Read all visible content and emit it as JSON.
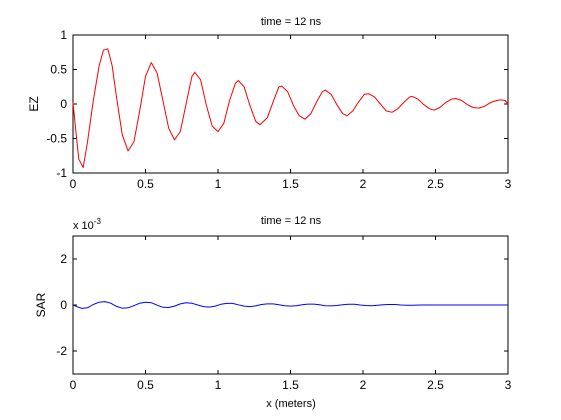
{
  "chart_data": [
    {
      "type": "line",
      "title": "time = 12 ns",
      "xlabel": "",
      "ylabel": "EZ",
      "xlim": [
        0,
        3
      ],
      "ylim": [
        -1,
        1
      ],
      "xticks": [
        0,
        0.5,
        1,
        1.5,
        2,
        2.5,
        3
      ],
      "xtick_labels": [
        "0",
        "0.5",
        "1",
        "1.5",
        "2",
        "2.5",
        "3"
      ],
      "yticks": [
        -1,
        -0.5,
        0,
        0.5,
        1
      ],
      "ytick_labels": [
        "-1",
        "-0.5",
        "0",
        "0.5",
        "1"
      ],
      "series": [
        {
          "color": "#ff0000",
          "x": [
            0,
            0.02,
            0.04,
            0.07,
            0.1,
            0.14,
            0.18,
            0.21,
            0.24,
            0.27,
            0.3,
            0.34,
            0.38,
            0.42,
            0.46,
            0.5,
            0.54,
            0.58,
            0.62,
            0.66,
            0.7,
            0.74,
            0.78,
            0.82,
            0.84,
            0.88,
            0.92,
            0.96,
            1.0,
            1.04,
            1.08,
            1.12,
            1.14,
            1.18,
            1.22,
            1.26,
            1.29,
            1.34,
            1.38,
            1.42,
            1.44,
            1.48,
            1.52,
            1.56,
            1.6,
            1.64,
            1.68,
            1.72,
            1.74,
            1.78,
            1.82,
            1.86,
            1.89,
            1.93,
            1.97,
            2.01,
            2.04,
            2.08,
            2.12,
            2.16,
            2.2,
            2.24,
            2.28,
            2.32,
            2.34,
            2.38,
            2.42,
            2.46,
            2.49,
            2.53,
            2.57,
            2.61,
            2.64,
            2.68,
            2.72,
            2.76,
            2.8,
            2.84,
            2.88,
            2.92,
            2.95,
            2.98,
            3.0
          ],
          "y": [
            0.02,
            -0.4,
            -0.8,
            -0.92,
            -0.55,
            0.05,
            0.55,
            0.78,
            0.8,
            0.55,
            0.1,
            -0.45,
            -0.68,
            -0.55,
            -0.1,
            0.4,
            0.6,
            0.45,
            0.05,
            -0.35,
            -0.52,
            -0.4,
            0.0,
            0.4,
            0.46,
            0.35,
            -0.02,
            -0.32,
            -0.4,
            -0.28,
            0.05,
            0.3,
            0.34,
            0.25,
            -0.02,
            -0.25,
            -0.3,
            -0.2,
            0.03,
            0.25,
            0.26,
            0.18,
            -0.02,
            -0.17,
            -0.22,
            -0.14,
            0.03,
            0.18,
            0.2,
            0.14,
            -0.01,
            -0.14,
            -0.17,
            -0.1,
            0.03,
            0.14,
            0.15,
            0.1,
            0.0,
            -0.1,
            -0.12,
            -0.07,
            0.02,
            0.1,
            0.11,
            0.07,
            -0.01,
            -0.07,
            -0.09,
            -0.05,
            0.02,
            0.07,
            0.08,
            0.05,
            -0.01,
            -0.05,
            -0.06,
            -0.03,
            0.02,
            0.05,
            0.06,
            0.05,
            0.0
          ]
        }
      ]
    },
    {
      "type": "line",
      "title": "time = 12 ns",
      "xlabel": "x (meters)",
      "ylabel": "SAR",
      "exponent_label": "x 10",
      "exponent_value": "-3",
      "xlim": [
        0,
        3
      ],
      "ylim": [
        -3,
        3
      ],
      "xticks": [
        0,
        0.5,
        1,
        1.5,
        2,
        2.5,
        3
      ],
      "xtick_labels": [
        "0",
        "0.5",
        "1",
        "1.5",
        "2",
        "2.5",
        "3"
      ],
      "yticks": [
        -2,
        0,
        2
      ],
      "ytick_labels": [
        "-2",
        "0",
        "2"
      ],
      "series": [
        {
          "color": "#0000ff",
          "x": [
            0,
            0.03,
            0.06,
            0.1,
            0.14,
            0.18,
            0.22,
            0.26,
            0.3,
            0.34,
            0.38,
            0.42,
            0.46,
            0.5,
            0.54,
            0.58,
            0.62,
            0.66,
            0.7,
            0.74,
            0.78,
            0.82,
            0.86,
            0.9,
            0.94,
            0.98,
            1.02,
            1.06,
            1.1,
            1.14,
            1.18,
            1.22,
            1.26,
            1.3,
            1.34,
            1.38,
            1.42,
            1.46,
            1.5,
            1.54,
            1.58,
            1.62,
            1.66,
            1.7,
            1.74,
            1.78,
            1.82,
            1.86,
            1.9,
            1.94,
            1.98,
            2.02,
            2.06,
            2.1,
            2.14,
            2.18,
            2.22,
            2.26,
            2.3,
            2.34,
            2.4,
            2.5,
            2.6,
            2.8,
            3.0
          ],
          "y": [
            0.0,
            -0.08,
            -0.15,
            -0.12,
            0.02,
            0.12,
            0.15,
            0.08,
            -0.06,
            -0.14,
            -0.12,
            -0.03,
            0.08,
            0.12,
            0.1,
            -0.01,
            -0.1,
            -0.11,
            -0.05,
            0.05,
            0.1,
            0.08,
            0.0,
            -0.07,
            -0.09,
            -0.05,
            0.03,
            0.07,
            0.07,
            0.01,
            -0.05,
            -0.07,
            -0.04,
            0.02,
            0.05,
            0.05,
            0.01,
            -0.03,
            -0.05,
            -0.03,
            0.01,
            0.04,
            0.04,
            0.01,
            -0.03,
            -0.04,
            -0.02,
            0.01,
            0.03,
            0.03,
            0.0,
            -0.02,
            -0.03,
            -0.01,
            0.01,
            0.02,
            0.02,
            0.0,
            -0.01,
            -0.01,
            0.0,
            0.0,
            0.0,
            0.0,
            0.0
          ]
        }
      ]
    }
  ]
}
